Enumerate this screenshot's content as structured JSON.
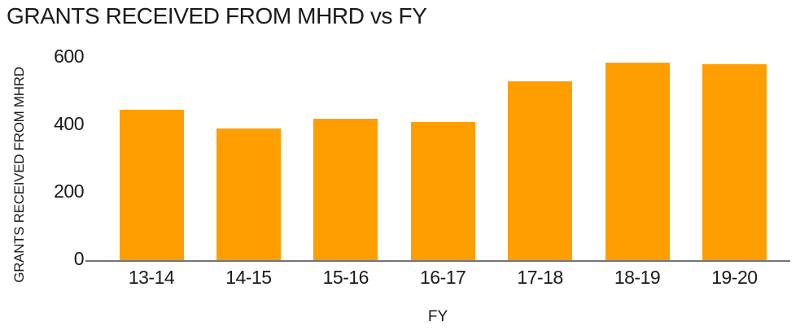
{
  "chart_data": {
    "type": "bar",
    "title": "GRANTS RECEIVED FROM MHRD vs FY",
    "categories": [
      "13-14",
      "14-15",
      "15-16",
      "16-17",
      "17-18",
      "18-19",
      "19-20"
    ],
    "values": [
      445,
      390,
      420,
      410,
      530,
      585,
      580
    ],
    "xlabel": "FY",
    "ylabel": "GRANTS RECEIVED FROM MHRD",
    "ylim": [
      0,
      600
    ],
    "yticks": [
      0,
      200,
      400,
      600
    ],
    "bar_color": "#FF9E00",
    "axis_line_color": "#757575",
    "text_color": "#1a1a1a",
    "background_color": "#FFFFFF",
    "grid": false,
    "legend": false
  }
}
